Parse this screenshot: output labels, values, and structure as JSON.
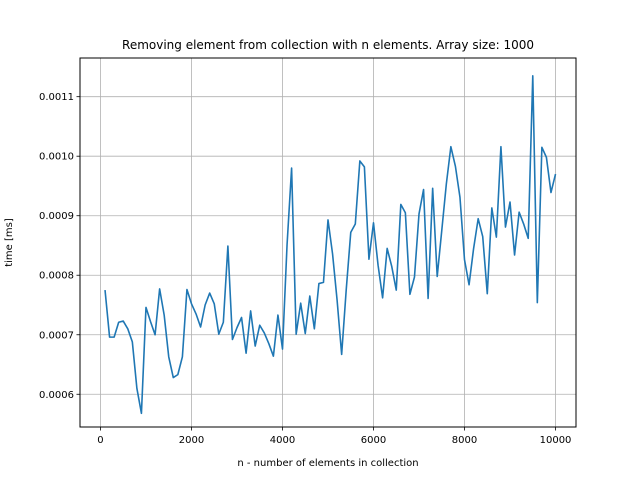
{
  "chart_data": {
    "type": "line",
    "title": "Removing element from collection with n elements. Array size: 1000",
    "xlabel": "n - number of elements in collection",
    "ylabel": "time [ms]",
    "xlim": [
      -450,
      10450
    ],
    "ylim": [
      0.000545,
      0.001165
    ],
    "xticks": [
      0,
      2000,
      4000,
      6000,
      8000,
      10000
    ],
    "xtick_labels": [
      "0",
      "2000",
      "4000",
      "6000",
      "8000",
      "10000"
    ],
    "yticks": [
      0.0006,
      0.0007,
      0.0008,
      0.0009,
      0.001,
      0.0011
    ],
    "ytick_labels": [
      "0.0006",
      "0.0007",
      "0.0008",
      "0.0009",
      "0.0010",
      "0.0011"
    ],
    "grid": true,
    "line_color": "#1f77b4",
    "series": [
      {
        "x": [
          100,
          200,
          300,
          400,
          500,
          600,
          700,
          800,
          900,
          1000,
          1100,
          1200,
          1300,
          1400,
          1500,
          1600,
          1700,
          1800,
          1900,
          2000,
          2100,
          2200,
          2300,
          2400,
          2500,
          2600,
          2700,
          2800,
          2900,
          3000,
          3100,
          3200,
          3300,
          3400,
          3500,
          3600,
          3700,
          3800,
          3900,
          4000,
          4100,
          4200,
          4300,
          4400,
          4500,
          4600,
          4700,
          4800,
          4900,
          5000,
          5100,
          5200,
          5300,
          5400,
          5500,
          5600,
          5700,
          5800,
          5900,
          6000,
          6100,
          6200,
          6300,
          6400,
          6500,
          6600,
          6700,
          6800,
          6900,
          7000,
          7100,
          7200,
          7300,
          7400,
          7500,
          7600,
          7700,
          7800,
          7900,
          8000,
          8100,
          8200,
          8300,
          8400,
          8500,
          8600,
          8700,
          8800,
          8900,
          9000,
          9100,
          9200,
          9300,
          9400,
          9500,
          9600,
          9700,
          9800,
          9900,
          10000
        ],
        "values": [
          0.000775,
          0.000696,
          0.000696,
          0.000721,
          0.000723,
          0.00071,
          0.000688,
          0.00061,
          0.000568,
          0.000746,
          0.000722,
          0.0007,
          0.000777,
          0.000733,
          0.000663,
          0.000628,
          0.000633,
          0.000663,
          0.000776,
          0.000752,
          0.000735,
          0.000713,
          0.00075,
          0.00077,
          0.000752,
          0.000701,
          0.000721,
          0.000849,
          0.000692,
          0.000712,
          0.000729,
          0.000669,
          0.00074,
          0.000681,
          0.000716,
          0.000703,
          0.000685,
          0.000664,
          0.000733,
          0.000676,
          0.000851,
          0.00098,
          0.000701,
          0.000753,
          0.000702,
          0.000765,
          0.00071,
          0.000786,
          0.000788,
          0.000893,
          0.000836,
          0.000758,
          0.000667,
          0.000775,
          0.000872,
          0.000886,
          0.000992,
          0.000982,
          0.000827,
          0.000888,
          0.000817,
          0.000762,
          0.000845,
          0.000815,
          0.000775,
          0.000919,
          0.000905,
          0.000768,
          0.000797,
          0.000903,
          0.000944,
          0.000761,
          0.000946,
          0.000798,
          0.000875,
          0.000953,
          0.001016,
          0.000983,
          0.000931,
          0.000826,
          0.000784,
          0.000845,
          0.000895,
          0.000865,
          0.000769,
          0.000913,
          0.000864,
          0.001016,
          0.000881,
          0.000923,
          0.000834,
          0.000906,
          0.000886,
          0.000862,
          0.001135,
          0.000754,
          0.001015,
          0.000998,
          0.000939,
          0.00097
        ]
      }
    ]
  }
}
